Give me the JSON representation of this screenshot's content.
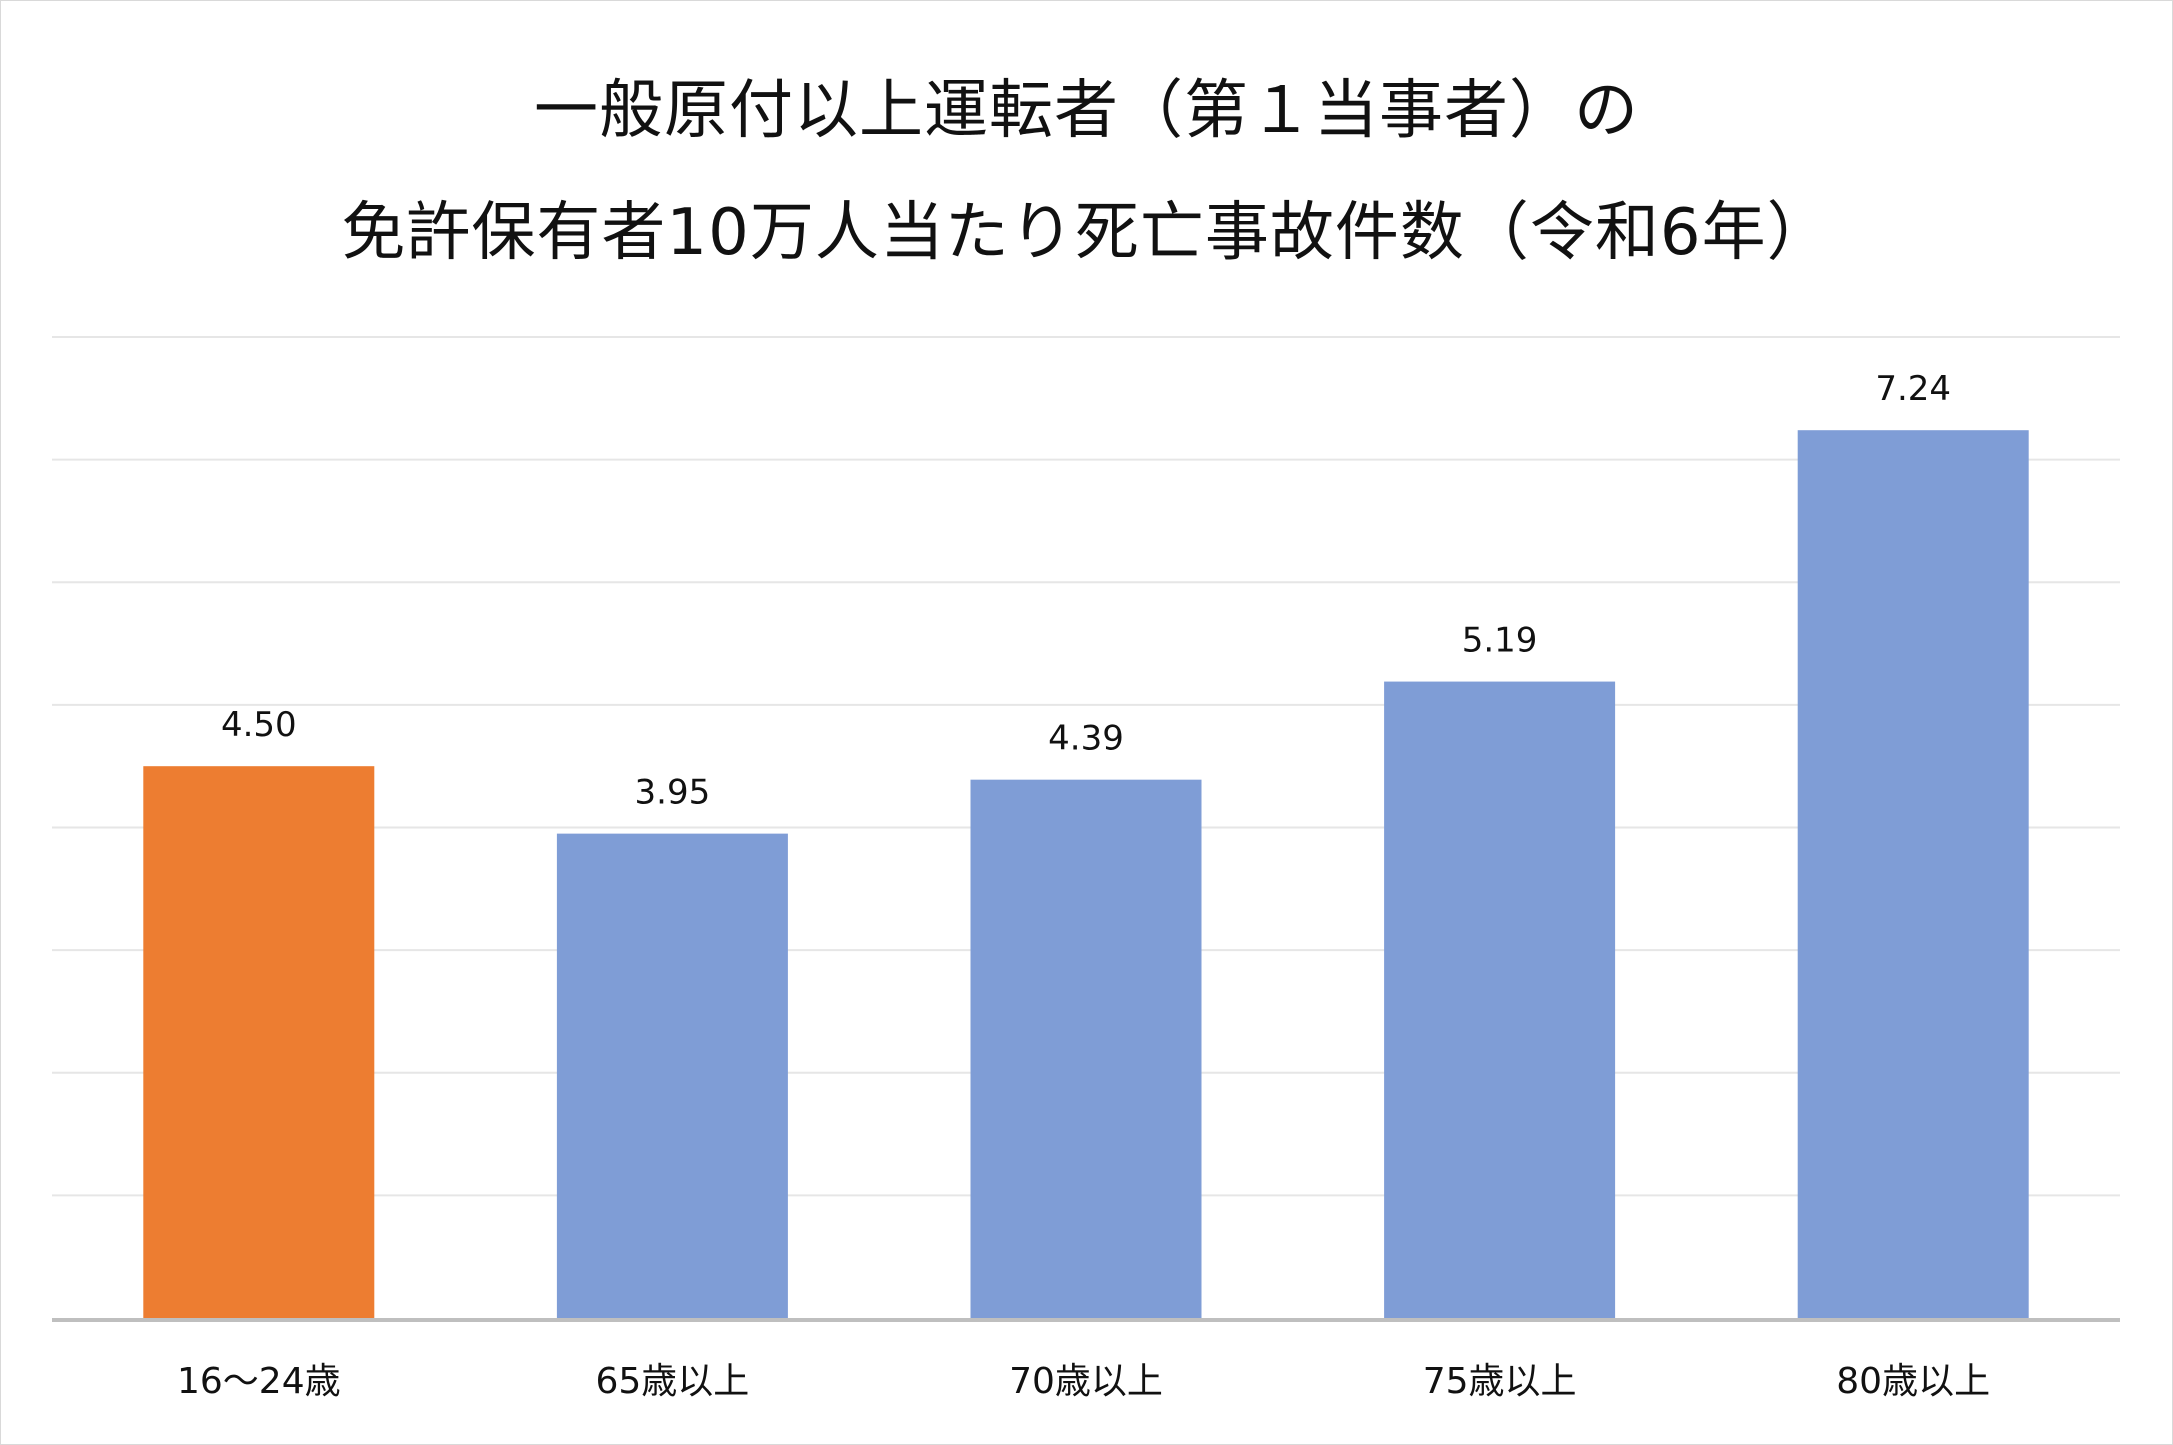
{
  "chart_data": {
    "type": "bar",
    "title_lines": [
      "一般原付以上運転者（第１当事者）の",
      "免許保有者10万人当たり死亡事故件数（令和6年）"
    ],
    "categories": [
      "16～24歳",
      "65歳以上",
      "70歳以上",
      "75歳以上",
      "80歳以上"
    ],
    "values": [
      4.5,
      3.95,
      4.39,
      5.19,
      7.24
    ],
    "value_labels": [
      "4.50",
      "3.95",
      "4.39",
      "5.19",
      "7.24"
    ],
    "bar_colors": [
      "#ED7D31",
      "#7F9DD6",
      "#7F9DD6",
      "#7F9DD6",
      "#7F9DD6"
    ],
    "ylim": [
      0,
      8
    ],
    "y_grid_step": 1,
    "grid": true,
    "y_tick_labels_shown": false,
    "legend": "none",
    "xlabel": "",
    "ylabel": ""
  }
}
